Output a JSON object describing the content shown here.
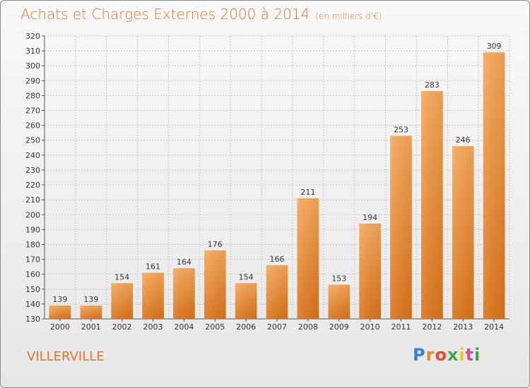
{
  "title": "Achats et Charges Externes 2000 à 2014",
  "unit": "(en milliers d'€)",
  "location": "VILLERVILLE",
  "brand": {
    "letters": [
      "P",
      "r",
      "o",
      "x",
      "i",
      "t",
      "i"
    ],
    "colors": [
      "#3a7fd0",
      "#e08a2a",
      "#e84a2a",
      "#3aa84a",
      "#e8c62a",
      "#d84aa0",
      "#3aa84a"
    ]
  },
  "colors": {
    "bar": "#f0a050",
    "bar_dark": "#de7a1e",
    "title": "#e0782a",
    "text": "#333333",
    "grid": "#c8c8c8"
  },
  "chart_data": {
    "type": "bar",
    "title": "Achats et Charges Externes 2000 à 2014",
    "subtitle": "(en milliers d'€)",
    "categories": [
      "2000",
      "2001",
      "2002",
      "2003",
      "2004",
      "2005",
      "2006",
      "2007",
      "2008",
      "2009",
      "2010",
      "2011",
      "2012",
      "2013",
      "2014"
    ],
    "values": [
      139,
      139,
      154,
      161,
      164,
      176,
      154,
      166,
      211,
      153,
      194,
      253,
      283,
      246,
      309
    ],
    "ylim": [
      130,
      320
    ],
    "yticks": [
      130,
      140,
      150,
      160,
      170,
      180,
      190,
      200,
      210,
      220,
      230,
      240,
      250,
      260,
      270,
      280,
      290,
      300,
      310,
      320
    ],
    "grid": true,
    "data_labels": true
  }
}
